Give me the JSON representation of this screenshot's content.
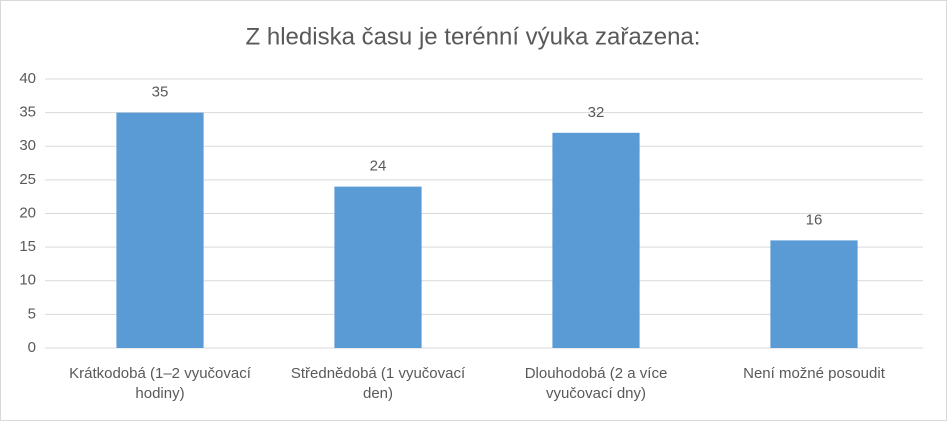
{
  "chart_data": {
    "type": "bar",
    "title": "Z hlediska času je terénní výuka zařazena:",
    "categories": [
      "Krátkodobá (1–2 vyučovací hodiny)",
      "Střednědobá (1 vyučovací den)",
      "Dlouhodobá (2 a více vyučovací dny)",
      "Není možné posoudit"
    ],
    "values": [
      35,
      24,
      32,
      16
    ],
    "color": "#5b9bd5",
    "ylim": [
      0,
      40
    ],
    "yticks": [
      0,
      5,
      10,
      15,
      20,
      25,
      30,
      35,
      40
    ],
    "grid": true
  }
}
